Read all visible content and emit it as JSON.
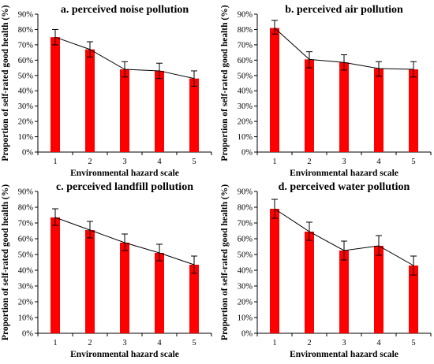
{
  "chart_data": [
    {
      "type": "bar",
      "title": "a. perceived noise pollution",
      "xlabel": "Environmental hazard scale",
      "ylabel": "Proportion of self-rated good health (%)",
      "categories": [
        "1",
        "2",
        "3",
        "4",
        "5"
      ],
      "yticks": [
        "0%",
        "10%",
        "20%",
        "30%",
        "40%",
        "50%",
        "60%",
        "70%",
        "80%",
        "90%"
      ],
      "ylim": [
        0,
        90
      ],
      "values": [
        75,
        67,
        54,
        53,
        48
      ],
      "err_low": [
        70,
        62,
        49,
        48,
        43
      ],
      "err_high": [
        80,
        72,
        59,
        58,
        53
      ],
      "line_overlay": true,
      "bar_color": "#ff0000",
      "grid": false
    },
    {
      "type": "bar",
      "title": "b. perceived air pollution",
      "xlabel": "Environmental hazard scale",
      "ylabel": "Proportion of self-rated good health (%)",
      "categories": [
        "1",
        "2",
        "3",
        "4",
        "5"
      ],
      "yticks": [
        "0%",
        "10%",
        "20%",
        "30%",
        "40%",
        "50%",
        "60%",
        "70%",
        "80%",
        "90%"
      ],
      "ylim": [
        0,
        90
      ],
      "values": [
        81,
        60.5,
        58.5,
        54.5,
        54
      ],
      "err_low": [
        77,
        55,
        53.5,
        49.5,
        49
      ],
      "err_high": [
        86,
        65.5,
        63.5,
        59,
        59
      ],
      "line_overlay": true,
      "bar_color": "#ff0000",
      "grid": false
    },
    {
      "type": "bar",
      "title": "c. perceived landfill pollution",
      "xlabel": "Environmental hazard scale",
      "ylabel": "Proportion of self-rated good health (%)",
      "categories": [
        "1",
        "2",
        "3",
        "4",
        "5"
      ],
      "yticks": [
        "0%",
        "10%",
        "20%",
        "30%",
        "40%",
        "50%",
        "60%",
        "70%",
        "80%",
        "90%"
      ],
      "ylim": [
        0,
        90
      ],
      "values": [
        73.5,
        65.5,
        57.5,
        51,
        43.5
      ],
      "err_low": [
        68.5,
        60.5,
        52.5,
        46,
        38
      ],
      "err_high": [
        79,
        71,
        63,
        56.5,
        49
      ],
      "line_overlay": true,
      "bar_color": "#ff0000",
      "grid": false
    },
    {
      "type": "bar",
      "title": "d. perceived water pollution",
      "xlabel": "Environmental hazard scale",
      "ylabel": "Proportion of self-rated good health (%)",
      "categories": [
        "1",
        "2",
        "3",
        "4",
        "5"
      ],
      "yticks": [
        "0%",
        "10%",
        "20%",
        "30%",
        "40%",
        "50%",
        "60%",
        "70%",
        "80%",
        "90%"
      ],
      "ylim": [
        0,
        90
      ],
      "values": [
        79,
        64.5,
        52.5,
        55.5,
        43
      ],
      "err_low": [
        73,
        59,
        46.5,
        49.5,
        37
      ],
      "err_high": [
        85,
        70.5,
        58.5,
        62,
        49
      ],
      "line_overlay": true,
      "bar_color": "#ff0000",
      "grid": false
    }
  ]
}
